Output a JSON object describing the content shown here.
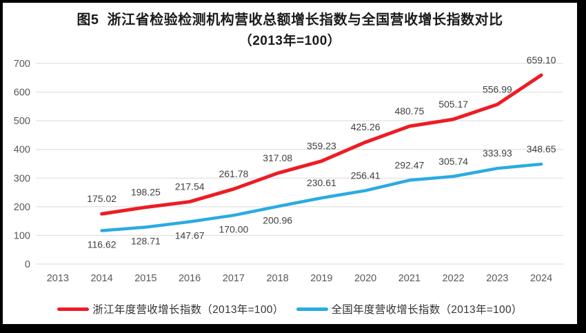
{
  "figure": {
    "background": "#FFFFFF",
    "frame_color": "#000000"
  },
  "chart_data": {
    "type": "line",
    "title": "图5  浙江省检验检测机构营收总额增长指数与全国营收增长指数对比",
    "subtitle": "（2013年=100）",
    "categories": [
      "2013",
      "2014",
      "2015",
      "2016",
      "2017",
      "2018",
      "2019",
      "2020",
      "2021",
      "2022",
      "2023",
      "2024"
    ],
    "ylim": [
      0,
      700
    ],
    "ytick_step": 100,
    "ytick_labels": [
      "0",
      "100",
      "200",
      "300",
      "400",
      "500",
      "600",
      "700"
    ],
    "grid": true,
    "legend_position": "bottom",
    "gridline_color": "#D9D9D9",
    "axis_label_color": "#595959",
    "data_label_color": "#404040",
    "series": [
      {
        "name": "浙江年度营收增长指数（2013年=100）",
        "color": "#ED1C24",
        "line_width": 5,
        "values": [
          null,
          175.02,
          198.25,
          217.54,
          261.78,
          317.08,
          359.23,
          425.26,
          480.75,
          505.17,
          556.99,
          659.1
        ],
        "value_labels": [
          null,
          "175.02",
          "198.25",
          "217.54",
          "261.78",
          "317.08",
          "359.23",
          "425.26",
          "480.75",
          "505.17",
          "556.99",
          "659.10"
        ],
        "label_positions": [
          null,
          "above",
          "above",
          "above",
          "above",
          "above",
          "above",
          "above",
          "above",
          "above",
          "above",
          "above"
        ]
      },
      {
        "name": "全国年度营收增长指数（2013年=100）",
        "color": "#29ABE2",
        "line_width": 4.5,
        "values": [
          null,
          116.62,
          128.71,
          147.67,
          170.0,
          200.96,
          230.61,
          256.41,
          292.47,
          305.74,
          333.93,
          348.65
        ],
        "value_labels": [
          null,
          "116.62",
          "128.71",
          "147.67",
          "170.00",
          "200.96",
          "230.61",
          "256.41",
          "292.47",
          "305.74",
          "333.93",
          "348.65"
        ],
        "label_positions": [
          null,
          "below",
          "below",
          "below",
          "below",
          "below",
          "above",
          "above",
          "above",
          "above",
          "above",
          "above"
        ]
      }
    ]
  }
}
